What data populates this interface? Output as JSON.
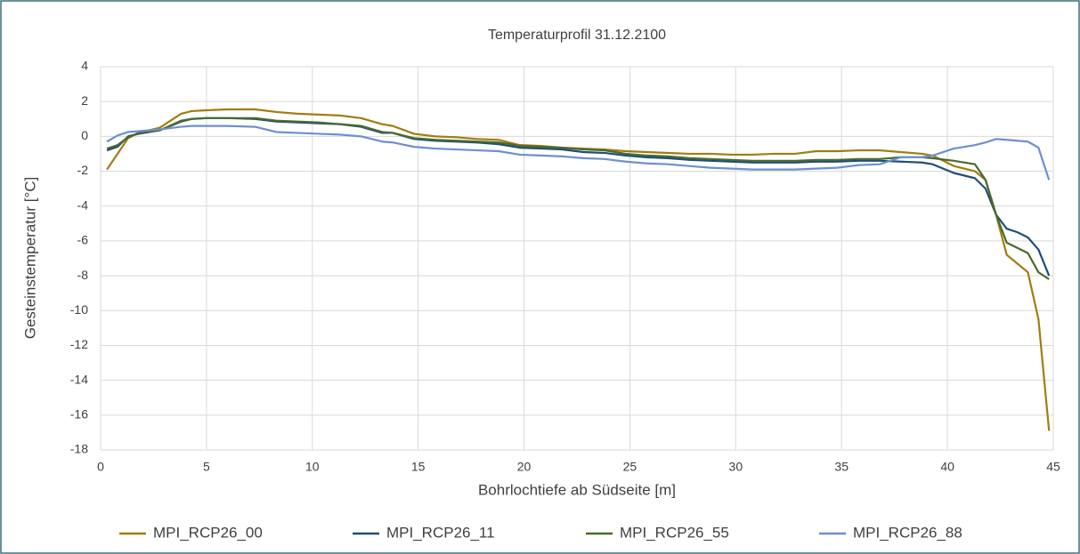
{
  "chart_data": {
    "type": "line",
    "title": "Temperaturprofil 31.12.2100",
    "x_label": "Bohrlochtiefe ab Südseite [m]",
    "y_label": "Gesteinstemperatur [°C]",
    "x": [
      0.3,
      0.8,
      1.3,
      1.8,
      2.8,
      3.8,
      4.3,
      5,
      6,
      7.3,
      8.3,
      9.3,
      10.3,
      11.3,
      12.3,
      13.3,
      13.8,
      14.8,
      15.8,
      16.8,
      17.8,
      18.8,
      19.8,
      20.8,
      21.8,
      22.8,
      23.8,
      24.8,
      25.8,
      26.8,
      27.8,
      28.8,
      29.8,
      30.8,
      31.8,
      32.8,
      33.8,
      34.8,
      35.8,
      36.8,
      37.8,
      38.8,
      39.3,
      40.3,
      41.3,
      41.8,
      42.3,
      42.8,
      43.3,
      43.8,
      44.3,
      44.8
    ],
    "series": [
      {
        "name": "MPI_RCP26_00",
        "color": "#a27c0f",
        "values": [
          -1.9,
          -1.0,
          -0.1,
          0.2,
          0.5,
          1.3,
          1.45,
          1.5,
          1.55,
          1.55,
          1.4,
          1.3,
          1.25,
          1.2,
          1.05,
          0.7,
          0.6,
          0.15,
          0.0,
          -0.05,
          -0.15,
          -0.2,
          -0.5,
          -0.55,
          -0.65,
          -0.7,
          -0.75,
          -0.85,
          -0.9,
          -0.95,
          -1.0,
          -1.0,
          -1.05,
          -1.05,
          -1.0,
          -1.0,
          -0.85,
          -0.85,
          -0.8,
          -0.8,
          -0.9,
          -1.0,
          -1.1,
          -1.7,
          -2.0,
          -2.5,
          -4.5,
          -6.8,
          -7.3,
          -7.8,
          -10.5,
          -16.9
        ]
      },
      {
        "name": "MPI_RCP26_11",
        "color": "#1f4e79",
        "values": [
          -0.8,
          -0.6,
          0.0,
          0.15,
          0.35,
          0.85,
          1.0,
          1.05,
          1.05,
          1.0,
          0.85,
          0.8,
          0.75,
          0.7,
          0.55,
          0.2,
          0.2,
          -0.15,
          -0.25,
          -0.3,
          -0.35,
          -0.45,
          -0.65,
          -0.7,
          -0.75,
          -0.9,
          -0.95,
          -1.1,
          -1.2,
          -1.25,
          -1.35,
          -1.4,
          -1.45,
          -1.5,
          -1.5,
          -1.5,
          -1.45,
          -1.45,
          -1.4,
          -1.4,
          -1.45,
          -1.5,
          -1.6,
          -2.1,
          -2.4,
          -3.0,
          -4.5,
          -5.3,
          -5.5,
          -5.8,
          -6.5,
          -8.0
        ]
      },
      {
        "name": "MPI_RCP26_55",
        "color": "#4a6a2b",
        "values": [
          -0.7,
          -0.5,
          -0.05,
          0.2,
          0.35,
          0.9,
          1.0,
          1.05,
          1.05,
          1.05,
          0.9,
          0.85,
          0.8,
          0.7,
          0.6,
          0.25,
          0.2,
          -0.1,
          -0.2,
          -0.25,
          -0.3,
          -0.35,
          -0.55,
          -0.6,
          -0.65,
          -0.75,
          -0.8,
          -1.0,
          -1.1,
          -1.15,
          -1.25,
          -1.3,
          -1.35,
          -1.4,
          -1.4,
          -1.4,
          -1.35,
          -1.35,
          -1.3,
          -1.3,
          -1.2,
          -1.2,
          -1.25,
          -1.4,
          -1.6,
          -2.5,
          -4.5,
          -6.1,
          -6.4,
          -6.7,
          -7.8,
          -8.2
        ]
      },
      {
        "name": "MPI_RCP26_88",
        "color": "#6e8fd0",
        "values": [
          -0.3,
          0.05,
          0.25,
          0.3,
          0.4,
          0.55,
          0.6,
          0.6,
          0.6,
          0.55,
          0.25,
          0.2,
          0.15,
          0.1,
          0.0,
          -0.3,
          -0.35,
          -0.6,
          -0.7,
          -0.75,
          -0.8,
          -0.85,
          -1.05,
          -1.1,
          -1.15,
          -1.25,
          -1.3,
          -1.45,
          -1.55,
          -1.6,
          -1.7,
          -1.8,
          -1.85,
          -1.9,
          -1.9,
          -1.9,
          -1.85,
          -1.8,
          -1.65,
          -1.6,
          -1.2,
          -1.2,
          -1.1,
          -0.7,
          -0.5,
          -0.35,
          -0.15,
          -0.2,
          -0.25,
          -0.3,
          -0.65,
          -2.5
        ]
      }
    ],
    "xlim": [
      0,
      45
    ],
    "xticks": [
      0,
      5,
      10,
      15,
      20,
      25,
      30,
      35,
      40,
      45
    ],
    "ylim": [
      -18,
      4
    ],
    "yticks": [
      -18,
      -16,
      -14,
      -12,
      -10,
      -8,
      -6,
      -4,
      -2,
      0,
      2,
      4
    ],
    "grid": true,
    "legend": "bottom"
  }
}
